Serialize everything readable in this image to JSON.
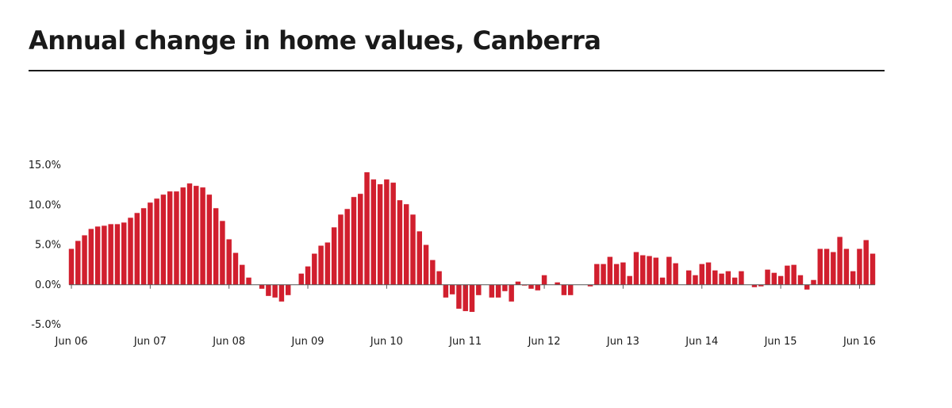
{
  "title": "Annual change in home values, Canberra",
  "colors": {
    "bar": "#d11f2e",
    "axis": "#555555",
    "text": "#1a1a1a"
  },
  "chart_data": {
    "type": "bar",
    "title": "Annual change in home values, Canberra",
    "xlabel": "",
    "ylabel": "",
    "ylim": [
      -5,
      15
    ],
    "y_ticks": [
      15,
      10,
      5,
      0,
      -5
    ],
    "y_tick_labels": [
      "15.0%",
      "10.0%",
      "5.0%",
      "0.0%",
      "-5.0%"
    ],
    "x_tick_labels": [
      "Jun 06",
      "Jun 07",
      "Jun 08",
      "Jun 09",
      "Jun 10",
      "Jun 11",
      "Jun 12",
      "Jun 13",
      "Jun 14",
      "Jun 15",
      "Jun 16"
    ],
    "x_tick_months": [
      0,
      12,
      24,
      36,
      48,
      60,
      72,
      84,
      96,
      108,
      120
    ],
    "grid": false,
    "series": [
      {
        "values": [
          4.5,
          5.5,
          6.2,
          7.0,
          7.3,
          7.4,
          7.6,
          7.6,
          7.8,
          8.4,
          9.0,
          9.6,
          10.3,
          10.8,
          11.3,
          11.7,
          11.7,
          12.2,
          12.7,
          12.4,
          12.2,
          11.3,
          9.6,
          8.0,
          5.7,
          4.0,
          2.5,
          0.9,
          0.0,
          -0.5,
          -1.4,
          -1.6,
          -2.1,
          -1.3,
          0.0,
          1.4,
          2.3,
          3.9,
          4.9,
          5.3,
          7.2,
          8.8,
          9.5,
          11.0,
          11.4,
          14.1,
          13.2,
          12.6,
          13.2,
          12.8,
          10.6,
          10.1,
          8.8,
          6.7,
          5.0,
          3.1,
          1.7,
          -1.6,
          -1.2,
          -3.0,
          -3.3,
          -3.4,
          -1.3,
          0.0,
          -1.6,
          -1.6,
          -0.8,
          -2.1,
          0.4,
          -0.1,
          -0.5,
          -0.7,
          1.2,
          0.0,
          0.3,
          -1.3,
          -1.3,
          0.0,
          0.0,
          -0.2,
          2.6,
          2.6,
          3.5,
          2.6,
          2.8,
          1.1,
          4.1,
          3.7,
          3.6,
          3.4,
          0.9,
          3.5,
          2.7,
          0.0,
          1.8,
          1.2,
          2.6,
          2.8,
          1.8,
          1.4,
          1.7,
          0.9,
          1.7,
          0.0,
          -0.3,
          -0.2,
          1.9,
          1.5,
          1.1,
          2.4,
          2.5,
          1.2,
          -0.6,
          0.6,
          4.5,
          4.5,
          4.1,
          6.0,
          4.5,
          1.7,
          4.5,
          5.6,
          3.9
        ]
      }
    ]
  }
}
